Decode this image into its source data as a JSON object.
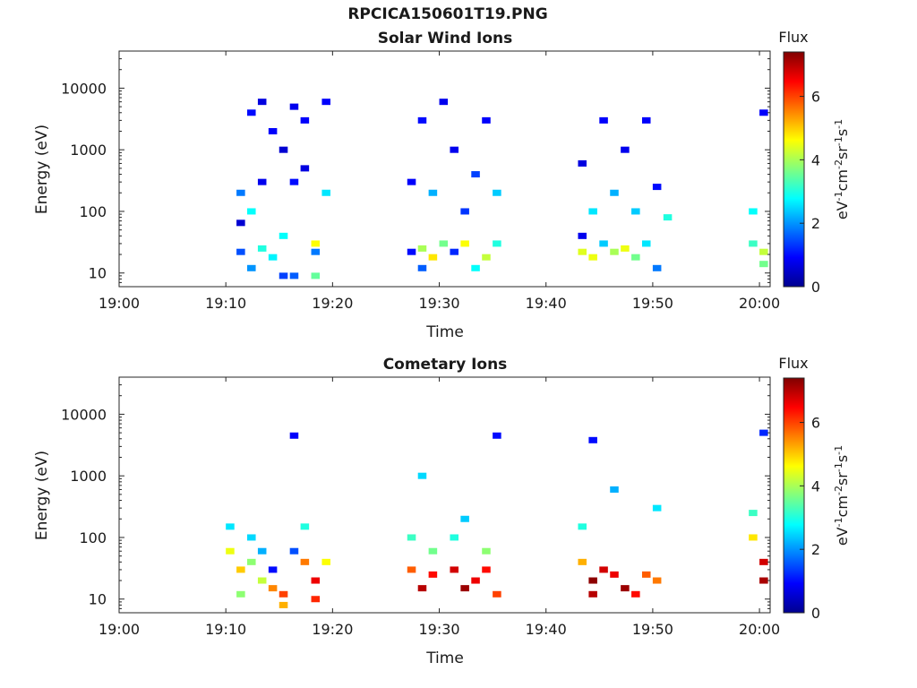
{
  "page_title": "RPCICA150601T19.PNG",
  "panels": [
    {
      "title": "Solar Wind Ions",
      "xlabel": "Time",
      "ylabel": "Energy (eV)",
      "colorbar_label_top": "Flux",
      "colorbar_unit": "eV-1cm-2sr-1s-1"
    },
    {
      "title": "Cometary Ions",
      "xlabel": "Time",
      "ylabel": "Energy (eV)",
      "colorbar_label_top": "Flux",
      "colorbar_unit": "eV-1cm-2sr-1s-1"
    }
  ],
  "chart_data": [
    {
      "type": "heatmap",
      "title": "Solar Wind Ions",
      "xlabel": "Time",
      "ylabel": "Energy (eV)",
      "x_ticks": [
        "19:00",
        "19:10",
        "19:20",
        "19:30",
        "19:40",
        "19:50",
        "20:00"
      ],
      "xlim": [
        "19:00",
        "20:01"
      ],
      "y_scale": "log",
      "y_ticks": [
        10,
        100,
        1000,
        10000
      ],
      "ylim": [
        6,
        40000
      ],
      "colorbar": {
        "label": "Flux",
        "unit": "eV-1cm-2sr-1s-1",
        "ticks": [
          0,
          2,
          4,
          6
        ],
        "range": [
          0,
          7.4
        ],
        "colormap": "jet"
      },
      "cells": [
        {
          "t": "19:11",
          "e": 22,
          "v": 1.5
        },
        {
          "t": "19:11",
          "e": 65,
          "v": 0.6
        },
        {
          "t": "19:11",
          "e": 200,
          "v": 1.8
        },
        {
          "t": "19:12",
          "e": 12,
          "v": 2.0
        },
        {
          "t": "19:12",
          "e": 100,
          "v": 2.8
        },
        {
          "t": "19:12",
          "e": 4000,
          "v": 1.0
        },
        {
          "t": "19:13",
          "e": 25,
          "v": 3.0
        },
        {
          "t": "19:13",
          "e": 300,
          "v": 0.8
        },
        {
          "t": "19:13",
          "e": 6000,
          "v": 0.7
        },
        {
          "t": "19:14",
          "e": 18,
          "v": 2.7
        },
        {
          "t": "19:14",
          "e": 2000,
          "v": 0.9
        },
        {
          "t": "19:15",
          "e": 9,
          "v": 1.4
        },
        {
          "t": "19:15",
          "e": 40,
          "v": 2.8
        },
        {
          "t": "19:15",
          "e": 1000,
          "v": 0.6
        },
        {
          "t": "19:16",
          "e": 9,
          "v": 1.6
        },
        {
          "t": "19:16",
          "e": 300,
          "v": 1.0
        },
        {
          "t": "19:16",
          "e": 5000,
          "v": 0.8
        },
        {
          "t": "19:17",
          "e": 500,
          "v": 0.7
        },
        {
          "t": "19:17",
          "e": 3000,
          "v": 0.9
        },
        {
          "t": "19:18",
          "e": 9,
          "v": 3.5
        },
        {
          "t": "19:18",
          "e": 30,
          "v": 4.6
        },
        {
          "t": "19:18",
          "e": 22,
          "v": 1.8
        },
        {
          "t": "19:19",
          "e": 200,
          "v": 2.6
        },
        {
          "t": "19:19",
          "e": 6000,
          "v": 0.9
        },
        {
          "t": "19:27",
          "e": 22,
          "v": 1.0
        },
        {
          "t": "19:27",
          "e": 300,
          "v": 0.9
        },
        {
          "t": "19:28",
          "e": 25,
          "v": 4.0
        },
        {
          "t": "19:28",
          "e": 12,
          "v": 1.6
        },
        {
          "t": "19:28",
          "e": 3000,
          "v": 1.0
        },
        {
          "t": "19:29",
          "e": 18,
          "v": 4.8
        },
        {
          "t": "19:29",
          "e": 200,
          "v": 2.2
        },
        {
          "t": "19:30",
          "e": 30,
          "v": 3.6
        },
        {
          "t": "19:30",
          "e": 6000,
          "v": 0.8
        },
        {
          "t": "19:31",
          "e": 22,
          "v": 1.2
        },
        {
          "t": "19:31",
          "e": 1000,
          "v": 0.8
        },
        {
          "t": "19:32",
          "e": 30,
          "v": 4.6
        },
        {
          "t": "19:32",
          "e": 100,
          "v": 1.3
        },
        {
          "t": "19:33",
          "e": 12,
          "v": 2.8
        },
        {
          "t": "19:33",
          "e": 400,
          "v": 1.4
        },
        {
          "t": "19:34",
          "e": 18,
          "v": 4.2
        },
        {
          "t": "19:34",
          "e": 3000,
          "v": 0.9
        },
        {
          "t": "19:35",
          "e": 30,
          "v": 3.0
        },
        {
          "t": "19:35",
          "e": 200,
          "v": 2.4
        },
        {
          "t": "19:43",
          "e": 22,
          "v": 4.4
        },
        {
          "t": "19:43",
          "e": 40,
          "v": 0.8
        },
        {
          "t": "19:43",
          "e": 600,
          "v": 0.7
        },
        {
          "t": "19:44",
          "e": 18,
          "v": 4.5
        },
        {
          "t": "19:44",
          "e": 100,
          "v": 2.6
        },
        {
          "t": "19:45",
          "e": 30,
          "v": 2.4
        },
        {
          "t": "19:45",
          "e": 3000,
          "v": 0.9
        },
        {
          "t": "19:46",
          "e": 22,
          "v": 4.0
        },
        {
          "t": "19:46",
          "e": 200,
          "v": 2.2
        },
        {
          "t": "19:47",
          "e": 25,
          "v": 4.5
        },
        {
          "t": "19:47",
          "e": 1000,
          "v": 0.8
        },
        {
          "t": "19:48",
          "e": 18,
          "v": 3.6
        },
        {
          "t": "19:48",
          "e": 100,
          "v": 2.4
        },
        {
          "t": "19:49",
          "e": 30,
          "v": 2.6
        },
        {
          "t": "19:49",
          "e": 3000,
          "v": 0.9
        },
        {
          "t": "19:50",
          "e": 12,
          "v": 1.8
        },
        {
          "t": "19:50",
          "e": 250,
          "v": 1.0
        },
        {
          "t": "19:51",
          "e": 80,
          "v": 3.0
        },
        {
          "t": "19:59",
          "e": 30,
          "v": 3.2
        },
        {
          "t": "19:59",
          "e": 100,
          "v": 2.8
        },
        {
          "t": "20:00",
          "e": 22,
          "v": 4.2
        },
        {
          "t": "20:00",
          "e": 14,
          "v": 3.6
        },
        {
          "t": "20:00",
          "e": 4000,
          "v": 0.9
        }
      ]
    },
    {
      "type": "heatmap",
      "title": "Cometary Ions",
      "xlabel": "Time",
      "ylabel": "Energy (eV)",
      "x_ticks": [
        "19:00",
        "19:10",
        "19:20",
        "19:30",
        "19:40",
        "19:50",
        "20:00"
      ],
      "xlim": [
        "19:00",
        "20:01"
      ],
      "y_scale": "log",
      "y_ticks": [
        10,
        100,
        1000,
        10000
      ],
      "ylim": [
        6,
        40000
      ],
      "colorbar": {
        "label": "Flux",
        "unit": "eV-1cm-2sr-1s-1",
        "ticks": [
          0,
          2,
          4,
          6
        ],
        "range": [
          0,
          7.4
        ],
        "colormap": "jet"
      },
      "cells": [
        {
          "t": "19:10",
          "e": 60,
          "v": 4.5
        },
        {
          "t": "19:10",
          "e": 150,
          "v": 2.6
        },
        {
          "t": "19:11",
          "e": 30,
          "v": 5.0
        },
        {
          "t": "19:11",
          "e": 12,
          "v": 3.8
        },
        {
          "t": "19:12",
          "e": 40,
          "v": 3.8
        },
        {
          "t": "19:12",
          "e": 100,
          "v": 2.5
        },
        {
          "t": "19:13",
          "e": 20,
          "v": 4.2
        },
        {
          "t": "19:13",
          "e": 60,
          "v": 2.2
        },
        {
          "t": "19:14",
          "e": 15,
          "v": 5.5
        },
        {
          "t": "19:14",
          "e": 30,
          "v": 1.0
        },
        {
          "t": "19:15",
          "e": 12,
          "v": 6.0
        },
        {
          "t": "19:15",
          "e": 8,
          "v": 5.2
        },
        {
          "t": "19:16",
          "e": 4500,
          "v": 0.9
        },
        {
          "t": "19:16",
          "e": 60,
          "v": 1.5
        },
        {
          "t": "19:17",
          "e": 40,
          "v": 5.6
        },
        {
          "t": "19:17",
          "e": 150,
          "v": 3.0
        },
        {
          "t": "19:18",
          "e": 20,
          "v": 6.6
        },
        {
          "t": "19:18",
          "e": 10,
          "v": 6.2
        },
        {
          "t": "19:19",
          "e": 40,
          "v": 4.6
        },
        {
          "t": "19:27",
          "e": 30,
          "v": 5.8
        },
        {
          "t": "19:27",
          "e": 100,
          "v": 3.2
        },
        {
          "t": "19:28",
          "e": 15,
          "v": 7.0
        },
        {
          "t": "19:28",
          "e": 1000,
          "v": 2.5
        },
        {
          "t": "19:29",
          "e": 25,
          "v": 6.4
        },
        {
          "t": "19:29",
          "e": 60,
          "v": 3.6
        },
        {
          "t": "19:31",
          "e": 30,
          "v": 6.8
        },
        {
          "t": "19:31",
          "e": 100,
          "v": 3.0
        },
        {
          "t": "19:32",
          "e": 15,
          "v": 7.2
        },
        {
          "t": "19:32",
          "e": 200,
          "v": 2.4
        },
        {
          "t": "19:33",
          "e": 20,
          "v": 6.6
        },
        {
          "t": "19:34",
          "e": 30,
          "v": 6.4
        },
        {
          "t": "19:34",
          "e": 60,
          "v": 3.8
        },
        {
          "t": "19:35",
          "e": 12,
          "v": 6.0
        },
        {
          "t": "19:35",
          "e": 4500,
          "v": 1.0
        },
        {
          "t": "19:43",
          "e": 40,
          "v": 5.2
        },
        {
          "t": "19:43",
          "e": 150,
          "v": 3.0
        },
        {
          "t": "19:44",
          "e": 20,
          "v": 7.3
        },
        {
          "t": "19:44",
          "e": 12,
          "v": 7.0
        },
        {
          "t": "19:44",
          "e": 3800,
          "v": 1.0
        },
        {
          "t": "19:45",
          "e": 30,
          "v": 6.8
        },
        {
          "t": "19:46",
          "e": 25,
          "v": 6.6
        },
        {
          "t": "19:46",
          "e": 600,
          "v": 2.2
        },
        {
          "t": "19:47",
          "e": 15,
          "v": 7.2
        },
        {
          "t": "19:48",
          "e": 12,
          "v": 6.4
        },
        {
          "t": "19:49",
          "e": 25,
          "v": 5.8
        },
        {
          "t": "19:50",
          "e": 20,
          "v": 5.6
        },
        {
          "t": "19:50",
          "e": 300,
          "v": 2.6
        },
        {
          "t": "19:59",
          "e": 100,
          "v": 4.8
        },
        {
          "t": "19:59",
          "e": 250,
          "v": 3.2
        },
        {
          "t": "20:00",
          "e": 20,
          "v": 7.1
        },
        {
          "t": "20:00",
          "e": 40,
          "v": 6.8
        },
        {
          "t": "20:00",
          "e": 5000,
          "v": 1.2
        }
      ]
    }
  ]
}
